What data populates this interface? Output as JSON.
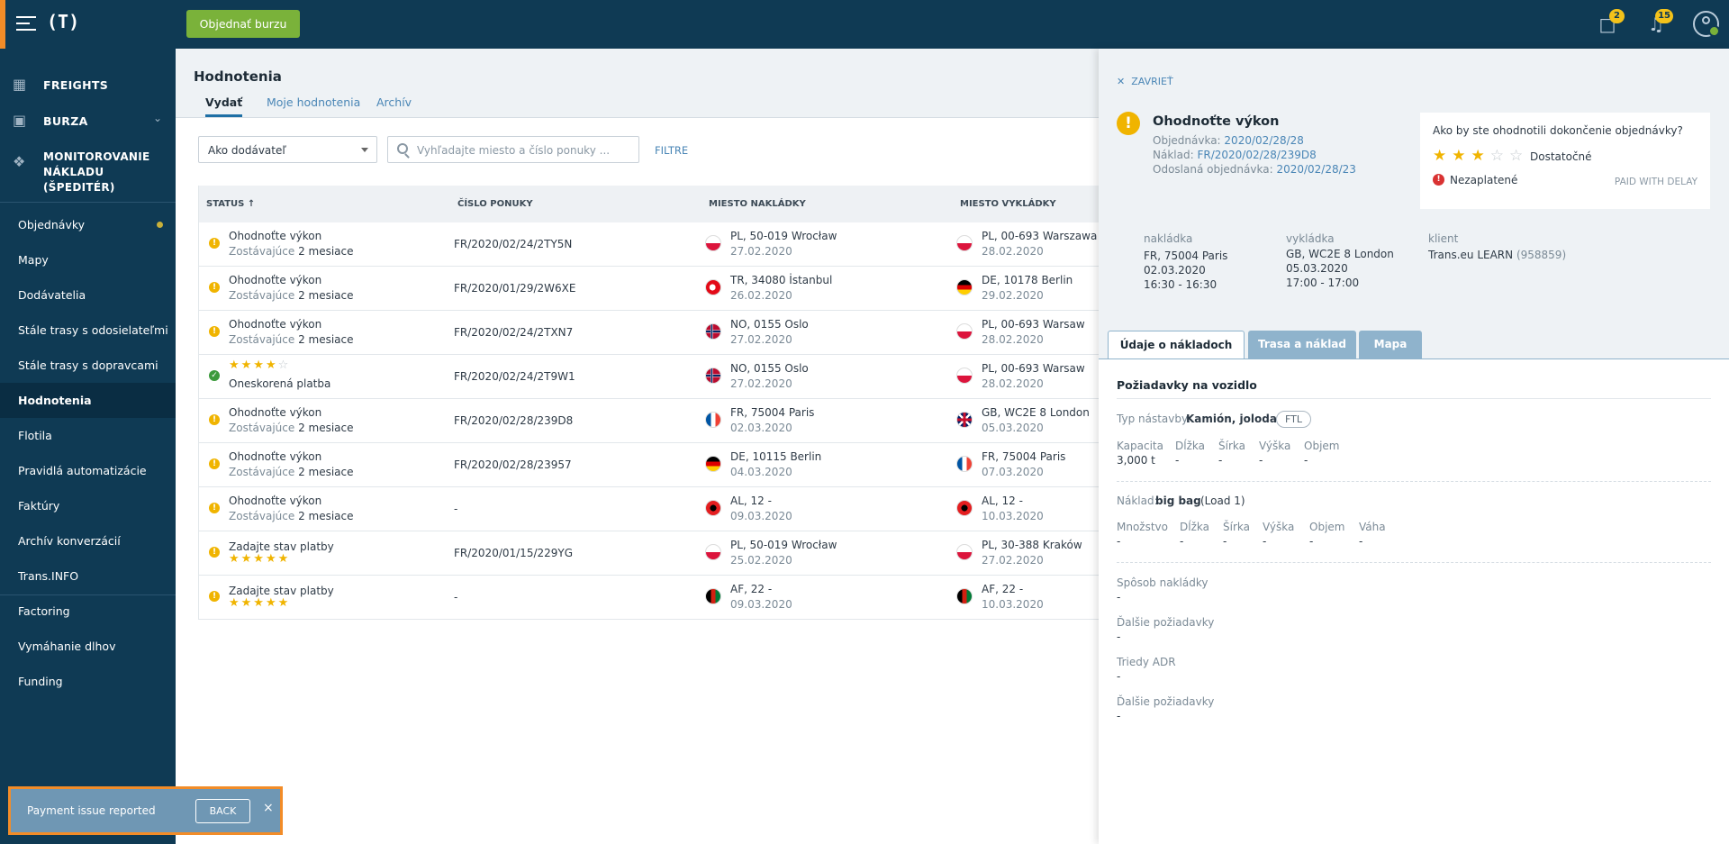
{
  "topbar": {
    "logo": "(T)",
    "order_button": "Objednať burzu",
    "messages_count": "2",
    "notifications_count": "15"
  },
  "sidebar": {
    "main_items": [
      {
        "label": "FREIGHTS",
        "icon": "truck-icon"
      },
      {
        "label": "BURZA",
        "icon": "box-icon"
      },
      {
        "label": "MONITOROVANIE NÁKLADU (ŠPEDITÉR)",
        "icon": "satellite-icon"
      }
    ],
    "items": [
      {
        "label": "Objednávky"
      },
      {
        "label": "Mapy"
      },
      {
        "label": "Dodávatelia"
      },
      {
        "label": "Stále trasy s odosielateľmi"
      },
      {
        "label": "Stále trasy s dopravcami"
      },
      {
        "label": "Hodnotenia"
      },
      {
        "label": "Flotila"
      },
      {
        "label": "Pravidlá automatizácie"
      },
      {
        "label": "Faktúry"
      },
      {
        "label": "Archív konverzácií"
      },
      {
        "label": "Trans.INFO"
      },
      {
        "label": "Factoring"
      },
      {
        "label": "Vymáhanie dlhov"
      },
      {
        "label": "Funding"
      }
    ]
  },
  "main": {
    "title": "Hodnotenia",
    "tabs": [
      "Vydať",
      "Moje hodnotenia",
      "Archív"
    ],
    "filter_select": "Ako dodávateľ",
    "search_placeholder": "Vyhľadajte miesto a číslo ponuky ...",
    "filters_link": "FILTRE",
    "columns": [
      "STATUS ↑",
      "ČÍSLO PONUKY",
      "MIESTO NAKLÁDKY",
      "MIESTO VYKLÁDKY"
    ],
    "rows": [
      {
        "status": "Ohodnoťte výkon",
        "remaining": "Zostávajúce",
        "time": "2 mesiace",
        "number": "FR/2020/02/24/2TY5N",
        "from": "PL, 50-019 Wrocław",
        "from_date": "27.02.2020",
        "to": "PL, 00-693 Warszawa",
        "to_date": "28.02.2020"
      },
      {
        "status": "Ohodnoťte výkon",
        "remaining": "Zostávajúce",
        "time": "2 mesiace",
        "number": "FR/2020/01/29/2W6XE",
        "from": "TR, 34080 İstanbul",
        "from_date": "26.02.2020",
        "to": "DE, 10178 Berlin",
        "to_date": "29.02.2020"
      },
      {
        "status": "Ohodnoťte výkon",
        "remaining": "Zostávajúce",
        "time": "2 mesiace",
        "number": "FR/2020/02/24/2TXN7",
        "from": "NO, 0155 Oslo",
        "from_date": "27.02.2020",
        "to": "PL, 00-693 Warsaw",
        "to_date": "28.02.2020"
      },
      {
        "status": "Oneskorená platba",
        "rating": 4,
        "number": "FR/2020/02/24/2T9W1",
        "from": "NO, 0155 Oslo",
        "from_date": "27.02.2020",
        "to": "PL, 00-693 Warsaw",
        "to_date": "28.02.2020"
      },
      {
        "status": "Ohodnoťte výkon",
        "remaining": "Zostávajúce",
        "time": "2 mesiace",
        "number": "FR/2020/02/28/239D8",
        "from": "FR, 75004 Paris",
        "from_date": "02.03.2020",
        "to": "GB, WC2E 8 London",
        "to_date": "05.03.2020"
      },
      {
        "status": "Ohodnoťte výkon",
        "remaining": "Zostávajúce",
        "time": "2 mesiace",
        "number": "FR/2020/02/28/23957",
        "from": "DE, 10115 Berlin",
        "from_date": "04.03.2020",
        "to": "FR, 75004 Paris",
        "to_date": "07.03.2020"
      },
      {
        "status": "Ohodnoťte výkon",
        "remaining": "Zostávajúce",
        "time": "2 mesiace",
        "number": "-",
        "from": "AL, 12 -",
        "from_date": "09.03.2020",
        "to": "AL, 12 -",
        "to_date": "10.03.2020"
      },
      {
        "status": "Zadajte stav platby",
        "rating": 5,
        "number": "FR/2020/01/15/229YG",
        "from": "PL, 50-019 Wrocław",
        "from_date": "25.02.2020",
        "to": "PL, 30-388 Kraków",
        "to_date": "27.02.2020"
      },
      {
        "status": "Zadajte stav platby",
        "rating": 5,
        "number": "-",
        "from": "AF, 22 -",
        "from_date": "09.03.2020",
        "to": "AF, 22 -",
        "to_date": "10.03.2020"
      }
    ]
  },
  "panel": {
    "close_label": "ZAVRIEŤ",
    "title": "Ohodnoťte výkon",
    "order_label": "Objednávka:",
    "order_value": "2020/02/28/28",
    "freight_label": "Náklad:",
    "freight_value": "FR/2020/02/28/239D8",
    "sent_label": "Odoslaná objednávka:",
    "sent_value": "2020/02/28/23",
    "rating_question": "Ako by ste ohodnotili dokončenie objednávky?",
    "rating_value": 3,
    "rating_word": "Dostatočné",
    "unpaid_label": "Nezaplatené",
    "paid_status": "PAID WITH DELAY",
    "loading": {
      "header": "nakládka",
      "place": "FR, 75004 Paris",
      "date": "02.03.2020",
      "time": "16:30 - 16:30"
    },
    "unloading": {
      "header": "vykládka",
      "place": "GB, WC2E 8 London",
      "date": "05.03.2020",
      "time": "17:00 - 17:00"
    },
    "client": {
      "header": "klient",
      "name": "Trans.eu LEARN",
      "id": "(958859)"
    },
    "tabs": [
      "Údaje o nákladoch",
      "Trasa a náklad",
      "Mapa"
    ],
    "vehicle_title": "Požiadavky na vozidlo",
    "body_type_label": "Typ nástavby:",
    "body_type_value": "Kamión, joloda",
    "ftl_tag": "FTL",
    "cap_labels": [
      "Kapacita",
      "Dĺžka",
      "Šírka",
      "Výška",
      "Objem"
    ],
    "cap_values": [
      "3,000 t",
      "-",
      "-",
      "-",
      "-"
    ],
    "cargo_label": "Náklad:",
    "cargo_value": "big bag",
    "cargo_extra": "(Load 1)",
    "cargo_labels": [
      "Množstvo",
      "Dĺžka",
      "Šírka",
      "Výška",
      "Objem",
      "Váha"
    ],
    "cargo_values": [
      "-",
      "-",
      "-",
      "-",
      "-",
      "-"
    ],
    "fields": [
      {
        "label": "Spôsob nakládky",
        "value": "-"
      },
      {
        "label": "Ďalšie požiadavky",
        "value": "-"
      },
      {
        "label": "Triedy ADR",
        "value": "-"
      },
      {
        "label": "Ďalšie požiadavky",
        "value": "-"
      }
    ]
  },
  "toast": {
    "message": "Payment issue reported",
    "back": "BACK",
    "close": "×"
  }
}
